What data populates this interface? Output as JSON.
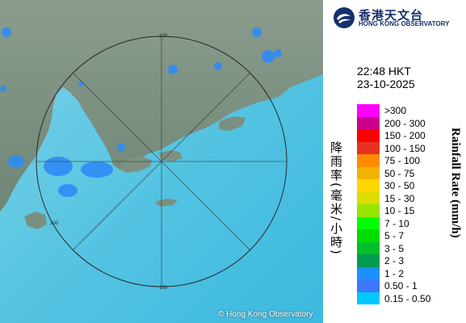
{
  "logo": {
    "chinese": "香港天文台",
    "english": "HONG KONG OBSERVATORY"
  },
  "timestamp": {
    "time": "22:48 HKT",
    "date": "23-10-2025"
  },
  "legend": {
    "title_cn": "降雨率(毫米/小時)",
    "title_en": "Rainfall Rate (mm/h)",
    "items": [
      {
        "label": ">300",
        "color": "#ff00ff"
      },
      {
        "label": "200 - 300",
        "color": "#c8008c"
      },
      {
        "label": "150 - 200",
        "color": "#ff0000"
      },
      {
        "label": "100 - 150",
        "color": "#e6321e"
      },
      {
        "label": "75 - 100",
        "color": "#ff8c00"
      },
      {
        "label": "50 - 75",
        "color": "#f0b400"
      },
      {
        "label": "30 - 50",
        "color": "#ffd700"
      },
      {
        "label": "15 - 30",
        "color": "#dcdc00"
      },
      {
        "label": "10 - 15",
        "color": "#96e600"
      },
      {
        "label": "7 - 10",
        "color": "#00ff00"
      },
      {
        "label": "5 - 7",
        "color": "#00dc00"
      },
      {
        "label": "3 - 5",
        "color": "#00be28"
      },
      {
        "label": "2 - 3",
        "color": "#009b50"
      },
      {
        "label": "1 - 2",
        "color": "#1e90ff"
      },
      {
        "label": "0.50 - 1",
        "color": "#3c78ff"
      },
      {
        "label": "0.15 - 0.50",
        "color": "#00c8ff"
      }
    ]
  },
  "map": {
    "range_labels": [
      "100",
      "100",
      "100"
    ],
    "copyright": "© Hong Kong Observatory",
    "colors": {
      "sea": "#4fc8e6",
      "land": "#6f8a78",
      "land_light": "#94a69a",
      "rain": "#1e90ff",
      "ring": "#333333"
    }
  }
}
